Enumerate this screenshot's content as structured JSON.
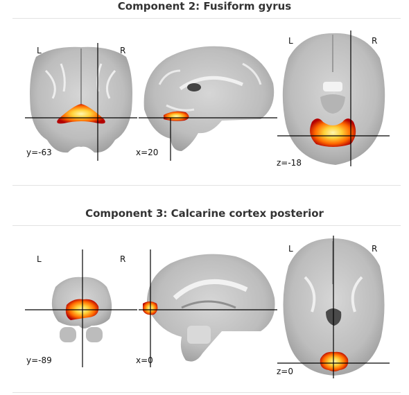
{
  "components": [
    {
      "title": "Component 2: Fusiform gyrus",
      "views": [
        {
          "name": "coronal",
          "left_label": "L",
          "right_label": "R",
          "coord": "y=-63"
        },
        {
          "name": "sagittal",
          "coord": "x=20"
        },
        {
          "name": "axial",
          "left_label": "L",
          "right_label": "R",
          "coord": "z=-18"
        }
      ]
    },
    {
      "title": "Component 3: Calcarine cortex posterior",
      "views": [
        {
          "name": "coronal",
          "left_label": "L",
          "right_label": "R",
          "coord": "y=-89"
        },
        {
          "name": "sagittal",
          "coord": "x=0"
        },
        {
          "name": "axial",
          "left_label": "L",
          "right_label": "R",
          "coord": "z=0"
        }
      ]
    }
  ],
  "colors": {
    "brain_light": "#cfcfcf",
    "brain_mid": "#a9a9a9",
    "brain_dark": "#7a7a7a",
    "crosshair": "#000000",
    "heat_red": "#b30000",
    "heat_orange": "#ff6a00",
    "heat_yellow": "#ffe45c"
  }
}
